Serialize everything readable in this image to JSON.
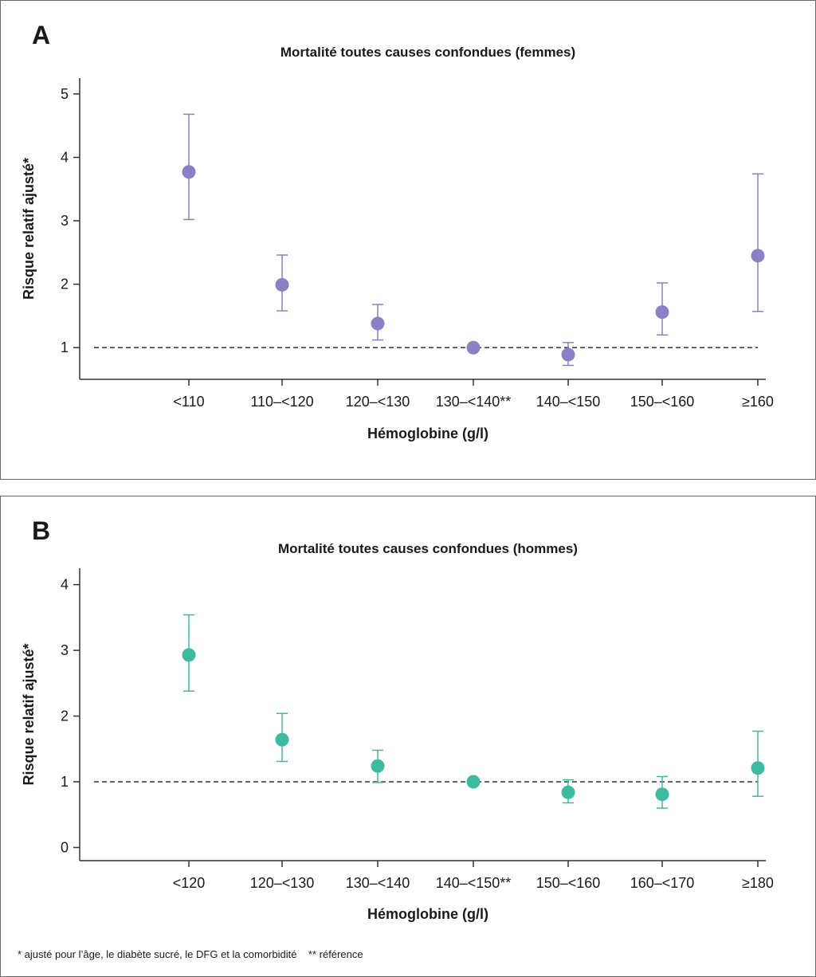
{
  "footnote": "* ajusté pour l’âge, le diabète sucré, le DFG et la comorbidité    ** référence",
  "chart_data": [
    {
      "panel": "A",
      "type": "scatter",
      "title": "Mortalité toutes causes confondues (femmes)",
      "xlabel": "Hémoglobine (g/l)",
      "ylabel": "Risque relatif ajusté*",
      "categories": [
        "<110",
        "110–<120",
        "120–<130",
        "130–<140**",
        "140–<150",
        "150–<160",
        "≥160"
      ],
      "values": [
        3.77,
        1.99,
        1.38,
        1.0,
        0.89,
        1.56,
        2.45
      ],
      "ci_low": [
        3.02,
        1.58,
        1.12,
        1.0,
        0.72,
        1.2,
        1.57
      ],
      "ci_high": [
        4.68,
        2.46,
        1.68,
        1.0,
        1.08,
        2.02,
        3.74
      ],
      "yticks": [
        1,
        2,
        3,
        4,
        5
      ],
      "ylim": [
        0.5,
        5.25
      ],
      "reference_line": 1,
      "color": "#8a80c4"
    },
    {
      "panel": "B",
      "type": "scatter",
      "title": "Mortalité toutes causes confondues (hommes)",
      "xlabel": "Hémoglobine (g/l)",
      "ylabel": "Risque relatif ajusté*",
      "categories": [
        "<120",
        "120–<130",
        "130–<140",
        "140–<150**",
        "150–<160",
        "160–<170",
        "≥180"
      ],
      "values": [
        2.93,
        1.64,
        1.24,
        1.0,
        0.84,
        0.81,
        1.21
      ],
      "ci_low": [
        2.38,
        1.31,
        0.99,
        1.0,
        0.68,
        0.6,
        0.78
      ],
      "ci_high": [
        3.54,
        2.04,
        1.48,
        1.0,
        1.03,
        1.08,
        1.77
      ],
      "yticks": [
        0,
        1,
        2,
        3,
        4
      ],
      "ylim": [
        -0.2,
        4.25
      ],
      "reference_line": 1,
      "color": "#3dbba0"
    }
  ]
}
